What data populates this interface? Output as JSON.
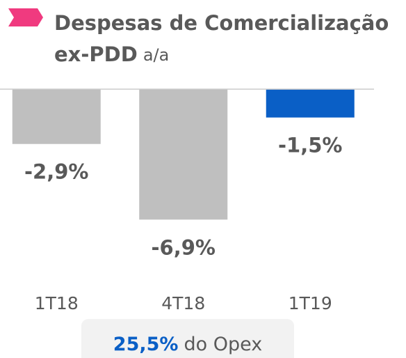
{
  "chart_data": {
    "type": "bar",
    "title": "Despesas de Comercialização",
    "subtitle": "ex-PDD",
    "unit_label": "a/a",
    "categories": [
      "1T18",
      "4T18",
      "1T19"
    ],
    "values": [
      -2.9,
      -6.9,
      -1.5
    ],
    "value_labels": [
      "-2,9%",
      "-6,9%",
      "-1,5%"
    ],
    "colors": [
      "#bfbfbf",
      "#bfbfbf",
      "#0a5fc6"
    ],
    "ylim": [
      -7,
      0
    ],
    "annotation": {
      "highlight": "25,5%",
      "text": "do Opex"
    }
  }
}
